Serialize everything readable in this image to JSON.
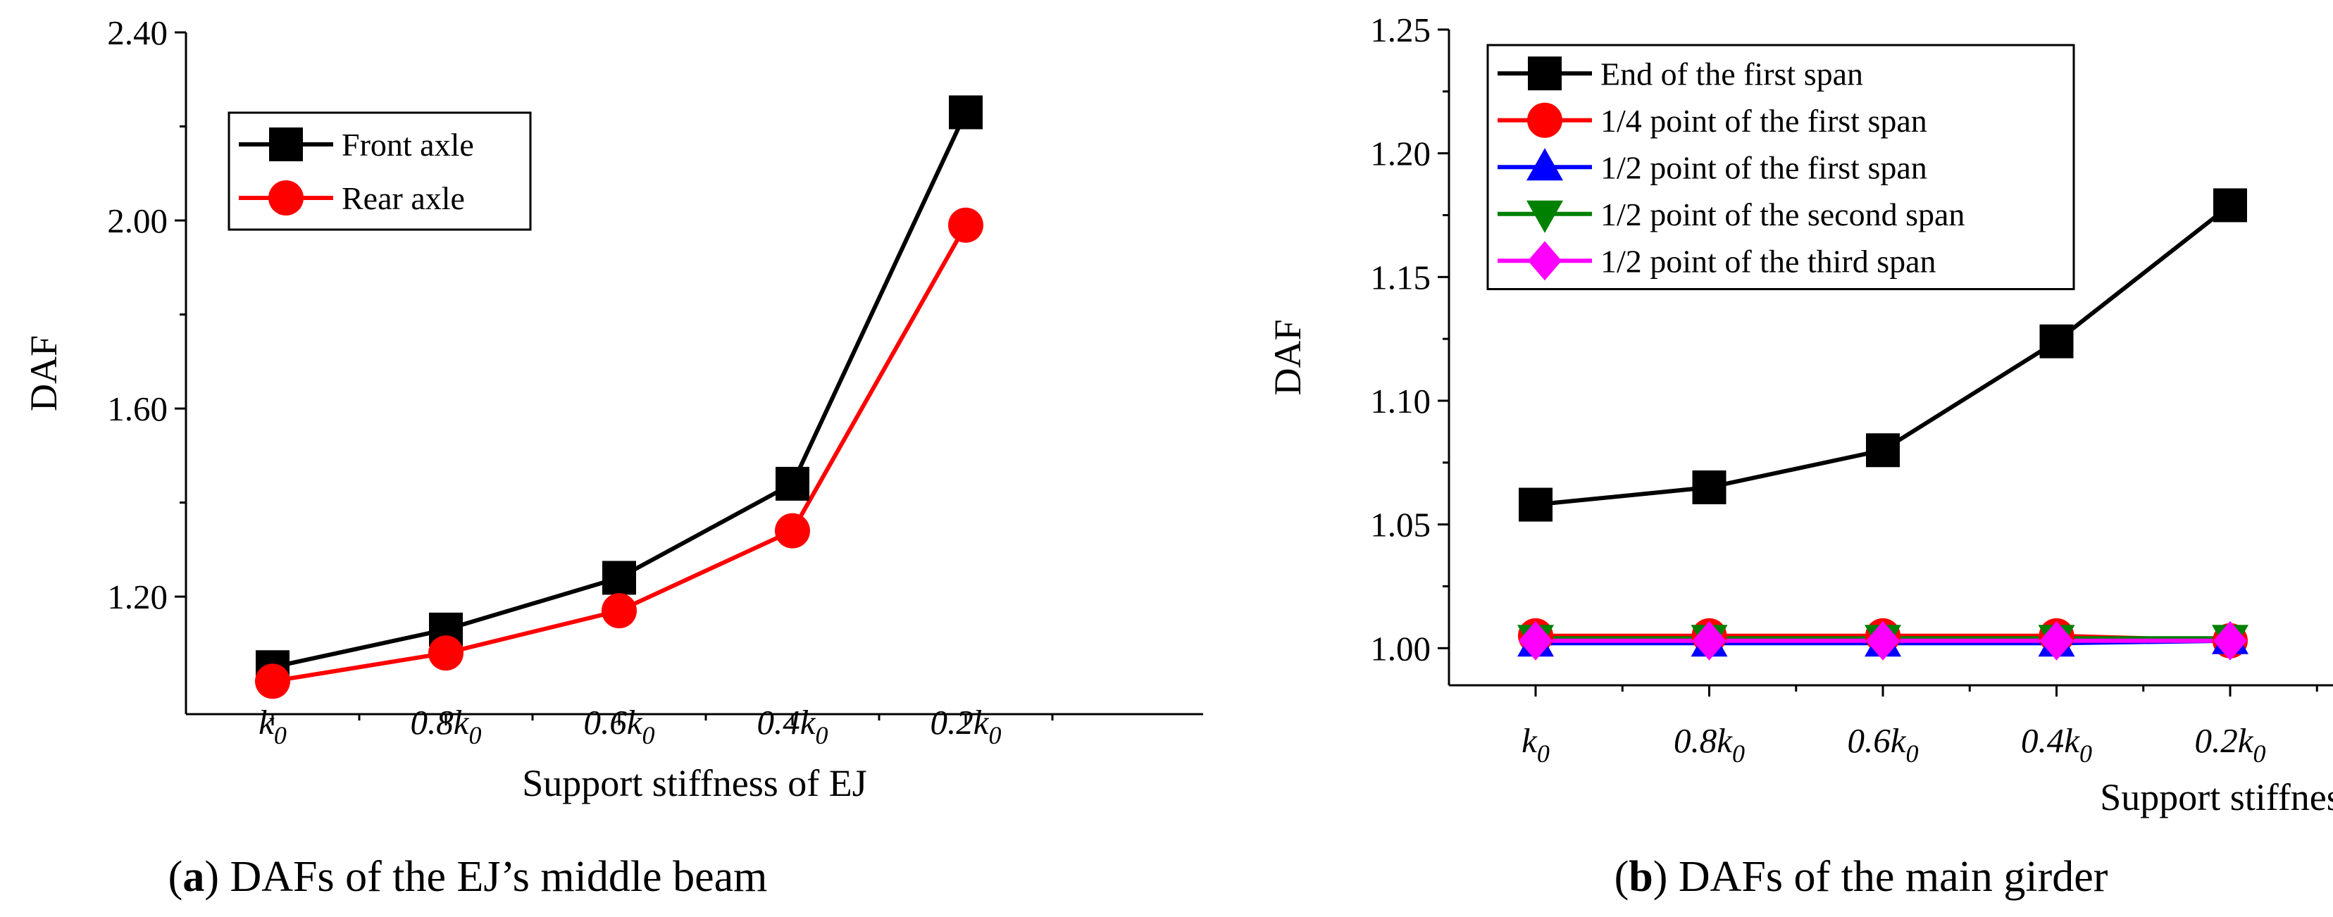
{
  "figure": {
    "captions": [
      {
        "tag": "a",
        "text": "DAFs of the EJ’s middle beam"
      },
      {
        "tag": "b",
        "text": "DAFs of the main girder"
      }
    ]
  },
  "chart_data": [
    {
      "type": "line",
      "panel": "a",
      "title": "",
      "xlabel": "Support stiffness of EJ",
      "ylabel": "DAF",
      "categories": [
        "k0",
        "0.8k0",
        "0.6k0",
        "0.4k0",
        "0.2k0"
      ],
      "category_labels": [
        {
          "coef": "",
          "base": "k",
          "sub": "0"
        },
        {
          "coef": "0.8",
          "base": "k",
          "sub": "0"
        },
        {
          "coef": "0.6",
          "base": "k",
          "sub": "0"
        },
        {
          "coef": "0.4",
          "base": "k",
          "sub": "0"
        },
        {
          "coef": "0.2",
          "base": "k",
          "sub": "0"
        }
      ],
      "ylim": [
        0.95,
        2.4
      ],
      "yticks": [
        1.2,
        1.6,
        2.0,
        2.4
      ],
      "ytick_labels": [
        "1.20",
        "1.60",
        "2.00",
        "2.40"
      ],
      "legend_position": "top-left",
      "grid": false,
      "series": [
        {
          "name": "Front axle",
          "color": "#000000",
          "marker": "square",
          "values": [
            1.05,
            1.13,
            1.24,
            1.44,
            2.23
          ]
        },
        {
          "name": "Rear axle",
          "color": "#ff0000",
          "marker": "circle",
          "values": [
            1.02,
            1.08,
            1.17,
            1.34,
            1.99
          ]
        }
      ]
    },
    {
      "type": "line",
      "panel": "b",
      "title": "",
      "xlabel": "Support stiffness of EJ",
      "ylabel": "DAF",
      "categories": [
        "k0",
        "0.8k0",
        "0.6k0",
        "0.4k0",
        "0.2k0"
      ],
      "category_labels": [
        {
          "coef": "",
          "base": "k",
          "sub": "0"
        },
        {
          "coef": "0.8",
          "base": "k",
          "sub": "0"
        },
        {
          "coef": "0.6",
          "base": "k",
          "sub": "0"
        },
        {
          "coef": "0.4",
          "base": "k",
          "sub": "0"
        },
        {
          "coef": "0.2",
          "base": "k",
          "sub": "0"
        }
      ],
      "ylim": [
        0.985,
        1.25
      ],
      "yticks": [
        1.0,
        1.05,
        1.1,
        1.15,
        1.2,
        1.25
      ],
      "ytick_labels": [
        "1.00",
        "1.05",
        "1.10",
        "1.15",
        "1.20",
        "1.25"
      ],
      "legend_position": "top-left",
      "grid": false,
      "series": [
        {
          "name": "End of the first span",
          "color": "#000000",
          "marker": "square",
          "values": [
            1.058,
            1.065,
            1.08,
            1.124,
            1.179
          ]
        },
        {
          "name": "1/4 point of the first span",
          "color": "#ff0000",
          "marker": "circle",
          "values": [
            1.005,
            1.005,
            1.005,
            1.005,
            1.003
          ]
        },
        {
          "name": "1/2 point of the first span",
          "color": "#0000ff",
          "marker": "triangle-up",
          "values": [
            1.002,
            1.002,
            1.002,
            1.002,
            1.003
          ]
        },
        {
          "name": "1/2 point of the second span",
          "color": "#008000",
          "marker": "triangle-down",
          "values": [
            1.004,
            1.004,
            1.004,
            1.004,
            1.004
          ]
        },
        {
          "name": "1/2 point of the third span",
          "color": "#ff00ff",
          "marker": "diamond",
          "values": [
            1.003,
            1.003,
            1.003,
            1.003,
            1.003
          ]
        }
      ]
    }
  ]
}
